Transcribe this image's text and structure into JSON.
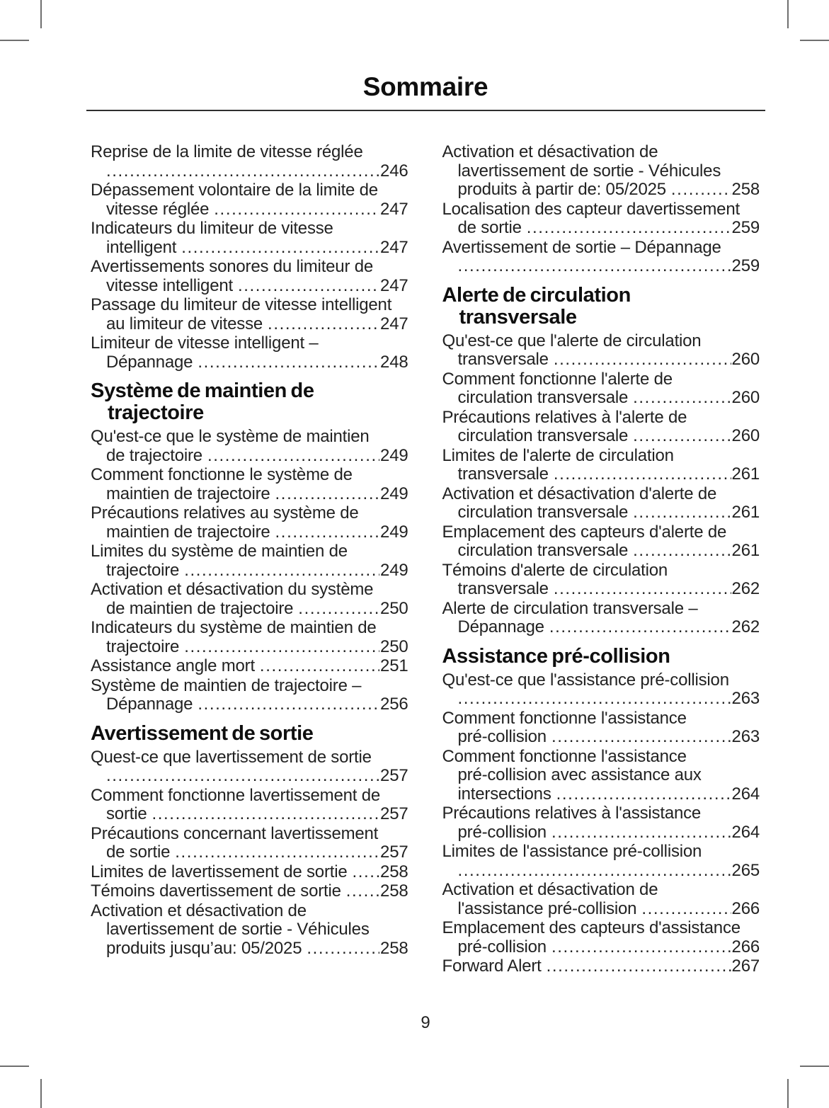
{
  "page": {
    "title": "Sommaire",
    "page_number": "9"
  },
  "colors": {
    "background": "#ffffff",
    "body_ink": "#222222",
    "heading_ink": "#0f0f0f",
    "rule": "#2e2e2e",
    "crop_mark": "#6f6f6f"
  },
  "toc": {
    "columns": [
      {
        "blocks": [
          {
            "entries": [
              {
                "lines": [
                  "Reprise de la limite de vitesse réglée"
                ],
                "last": "",
                "page": "246"
              },
              {
                "lines": [
                  "Dépassement volontaire de la limite de"
                ],
                "last": "vitesse réglée",
                "page": "247"
              },
              {
                "lines": [
                  "Indicateurs du limiteur de vitesse"
                ],
                "last": "intelligent",
                "page": "247"
              },
              {
                "lines": [
                  "Avertissements sonores du limiteur de"
                ],
                "last": "vitesse intelligent",
                "page": "247"
              },
              {
                "lines": [
                  "Passage du limiteur de vitesse intelligent"
                ],
                "last": "au limiteur de vitesse",
                "page": "247"
              },
              {
                "lines": [
                  "Limiteur de vitesse intelligent –"
                ],
                "last": "Dépannage",
                "page": "248"
              }
            ]
          },
          {
            "heading_lines": [
              "Système de maintien de",
              "trajectoire"
            ],
            "entries": [
              {
                "lines": [
                  "Qu'est-ce que le système de maintien"
                ],
                "last": "de trajectoire",
                "page": "249"
              },
              {
                "lines": [
                  "Comment fonctionne le système de"
                ],
                "last": "maintien de trajectoire",
                "page": "249"
              },
              {
                "lines": [
                  "Précautions relatives au système de"
                ],
                "last": "maintien de trajectoire",
                "page": "249"
              },
              {
                "lines": [
                  "Limites du système de maintien de"
                ],
                "last": "trajectoire",
                "page": "249"
              },
              {
                "lines": [
                  "Activation et désactivation du système"
                ],
                "last": "de maintien de trajectoire",
                "page": "250"
              },
              {
                "lines": [
                  "Indicateurs du système de maintien de"
                ],
                "last": "trajectoire",
                "page": "250"
              },
              {
                "lines": [],
                "last": "Assistance angle mort",
                "page": "251"
              },
              {
                "lines": [
                  "Système de maintien de trajectoire –"
                ],
                "last": "Dépannage",
                "page": "256"
              }
            ]
          },
          {
            "heading_lines": [
              "Avertissement de sortie"
            ],
            "entries": [
              {
                "lines": [
                  "Quest-ce que lavertissement de sortie"
                ],
                "last": "",
                "page": "257"
              },
              {
                "lines": [
                  "Comment fonctionne lavertissement de"
                ],
                "last": "sortie",
                "page": "257"
              },
              {
                "lines": [
                  "Précautions concernant lavertissement"
                ],
                "last": "de sortie",
                "page": "257"
              },
              {
                "lines": [],
                "last": "Limites de lavertissement de sortie",
                "page": "258"
              },
              {
                "lines": [],
                "last": "Témoins davertissement de sortie",
                "page": "258"
              },
              {
                "lines": [
                  "Activation et désactivation de",
                  "lavertissement de sortie - Véhicules"
                ],
                "last": "produits jusqu’au: 05/2025",
                "page": "258"
              }
            ]
          }
        ]
      },
      {
        "blocks": [
          {
            "entries": [
              {
                "lines": [
                  "Activation et désactivation de",
                  "lavertissement de sortie - Véhicules"
                ],
                "last": "produits à partir de: 05/2025",
                "page": "258"
              },
              {
                "lines": [
                  "Localisation des capteur davertissement"
                ],
                "last": "de sortie",
                "page": "259"
              },
              {
                "lines": [
                  "Avertissement de sortie – Dépannage"
                ],
                "last": "",
                "page": "259"
              }
            ]
          },
          {
            "heading_lines": [
              "Alerte de circulation",
              "transversale"
            ],
            "entries": [
              {
                "lines": [
                  "Qu'est-ce que l'alerte de circulation"
                ],
                "last": "transversale",
                "page": "260"
              },
              {
                "lines": [
                  "Comment fonctionne l'alerte de"
                ],
                "last": "circulation transversale",
                "page": "260"
              },
              {
                "lines": [
                  "Précautions relatives à l'alerte de"
                ],
                "last": "circulation transversale",
                "page": "260"
              },
              {
                "lines": [
                  "Limites de l'alerte de circulation"
                ],
                "last": "transversale",
                "page": "261"
              },
              {
                "lines": [
                  "Activation et désactivation d'alerte de"
                ],
                "last": "circulation transversale",
                "page": "261"
              },
              {
                "lines": [
                  "Emplacement des capteurs d'alerte de"
                ],
                "last": "circulation transversale",
                "page": "261"
              },
              {
                "lines": [
                  "Témoins d'alerte de circulation"
                ],
                "last": "transversale",
                "page": "262"
              },
              {
                "lines": [
                  "Alerte de circulation transversale –"
                ],
                "last": "Dépannage",
                "page": "262"
              }
            ]
          },
          {
            "heading_lines": [
              "Assistance pré-collision"
            ],
            "entries": [
              {
                "lines": [
                  "Qu'est-ce que l'assistance pré-collision"
                ],
                "last": "",
                "page": "263"
              },
              {
                "lines": [
                  "Comment fonctionne l'assistance"
                ],
                "last": "pré-collision",
                "page": "263"
              },
              {
                "lines": [
                  "Comment fonctionne l'assistance",
                  "pré-collision avec assistance aux"
                ],
                "last": "intersections",
                "page": "264"
              },
              {
                "lines": [
                  "Précautions relatives à l'assistance"
                ],
                "last": "pré-collision",
                "page": "264"
              },
              {
                "lines": [
                  "Limites de l'assistance pré-collision"
                ],
                "last": "",
                "page": "265"
              },
              {
                "lines": [
                  "Activation et désactivation de"
                ],
                "last": "l'assistance pré-collision",
                "page": "266"
              },
              {
                "lines": [
                  "Emplacement des capteurs d'assistance"
                ],
                "last": "pré-collision",
                "page": "266"
              },
              {
                "lines": [],
                "last": "Forward Alert",
                "page": "267"
              }
            ]
          }
        ]
      }
    ]
  }
}
